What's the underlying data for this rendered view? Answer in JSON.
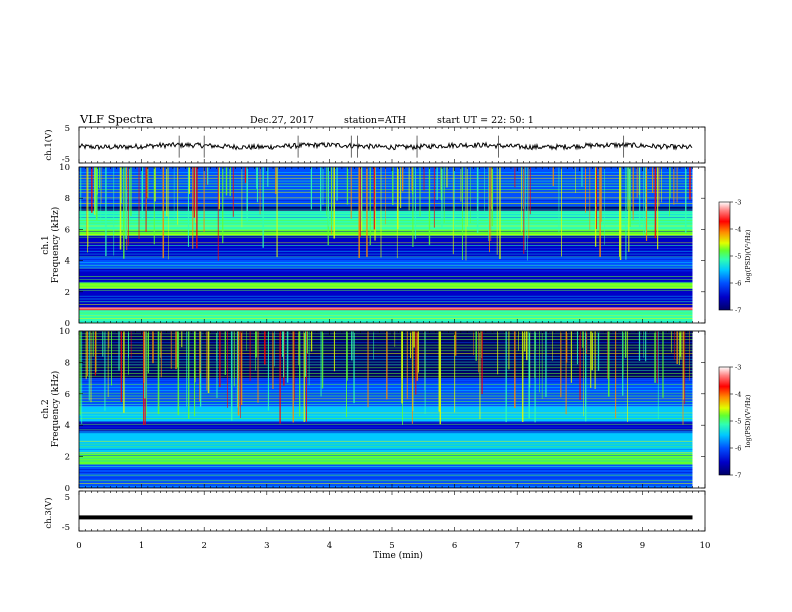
{
  "header": {
    "title": "VLF  Spectra",
    "date": "Dec.27, 2017",
    "station": "station=ATH",
    "start": "start  UT  =   22: 50: 1"
  },
  "colors": {
    "colormap": [
      "#000066",
      "#0000c8",
      "#0050ff",
      "#00c8ff",
      "#30ffb0",
      "#60ff30",
      "#e0ff00",
      "#ff8c00",
      "#ff0000",
      "#ff8080",
      "#ffffff"
    ],
    "trace": "#000000"
  },
  "chart_data": [
    {
      "type": "line",
      "name": "ch1-waveform",
      "ylabel": "ch.1(V)",
      "yticks": [
        "5",
        "-5"
      ],
      "ylim": [
        -5,
        5
      ],
      "xlim": [
        0,
        10
      ],
      "note_level": -0.3
    },
    {
      "type": "heatmap",
      "name": "ch1-spectrogram",
      "ylabel_lines": [
        "ch.1",
        "Frequency  (kHz)"
      ],
      "yticks": [
        "0",
        "2",
        "4",
        "6",
        "8",
        "10"
      ],
      "ylim": [
        0,
        10
      ],
      "xlim": [
        0,
        9.8
      ],
      "colorbar": {
        "label": "log(PSD)(V²/Hz)",
        "ticks": [
          "-3",
          "-4",
          "-5",
          "-6",
          "-7"
        ],
        "range": [
          -7,
          -3
        ]
      },
      "bands": [
        {
          "from": 0,
          "to": 0.8,
          "level": -5.5
        },
        {
          "from": 0.8,
          "to": 1.0,
          "level": -3.8
        },
        {
          "from": 1.0,
          "to": 2.2,
          "level": -6.5
        },
        {
          "from": 2.2,
          "to": 2.6,
          "level": -5.0
        },
        {
          "from": 2.6,
          "to": 3.5,
          "level": -6.6
        },
        {
          "from": 3.5,
          "to": 4.2,
          "level": -6.2
        },
        {
          "from": 4.2,
          "to": 5.6,
          "level": -6.8
        },
        {
          "from": 5.6,
          "to": 6.0,
          "level": -5.0
        },
        {
          "from": 6.0,
          "to": 7.2,
          "level": -5.4
        },
        {
          "from": 7.2,
          "to": 7.5,
          "level": -6.9
        },
        {
          "from": 7.5,
          "to": 10,
          "level": -6.3
        }
      ]
    },
    {
      "type": "heatmap",
      "name": "ch2-spectrogram",
      "ylabel_lines": [
        "ch.2",
        "Frequency  (kHz)"
      ],
      "yticks": [
        "0",
        "2",
        "4",
        "6",
        "8",
        "10"
      ],
      "ylim": [
        0,
        10
      ],
      "xlim": [
        0,
        9.8
      ],
      "colorbar": {
        "label": "log(PSD)(V²/Hz)",
        "ticks": [
          "-3",
          "-4",
          "-5",
          "-6",
          "-7"
        ],
        "range": [
          -7,
          -3
        ]
      },
      "bands": [
        {
          "from": 0,
          "to": 1.5,
          "level": -6.2
        },
        {
          "from": 1.5,
          "to": 2.2,
          "level": -5.2
        },
        {
          "from": 2.2,
          "to": 3.6,
          "level": -5.8
        },
        {
          "from": 3.6,
          "to": 4.2,
          "level": -6.6
        },
        {
          "from": 4.2,
          "to": 5.2,
          "level": -5.9
        },
        {
          "from": 5.2,
          "to": 7.0,
          "level": -6.3
        },
        {
          "from": 7.0,
          "to": 10,
          "level": -6.9
        }
      ]
    },
    {
      "type": "line",
      "name": "ch3-waveform",
      "ylabel": "ch.3(V)",
      "yticks": [
        "5",
        "-5"
      ],
      "ylim": [
        -5,
        5
      ],
      "xlim": [
        0,
        10
      ],
      "level": -1.6
    }
  ],
  "xaxis": {
    "label": "Time  (min)",
    "ticks": [
      "0",
      "1",
      "2",
      "3",
      "4",
      "5",
      "6",
      "7",
      "8",
      "9",
      "10"
    ],
    "range": [
      0,
      10
    ]
  }
}
